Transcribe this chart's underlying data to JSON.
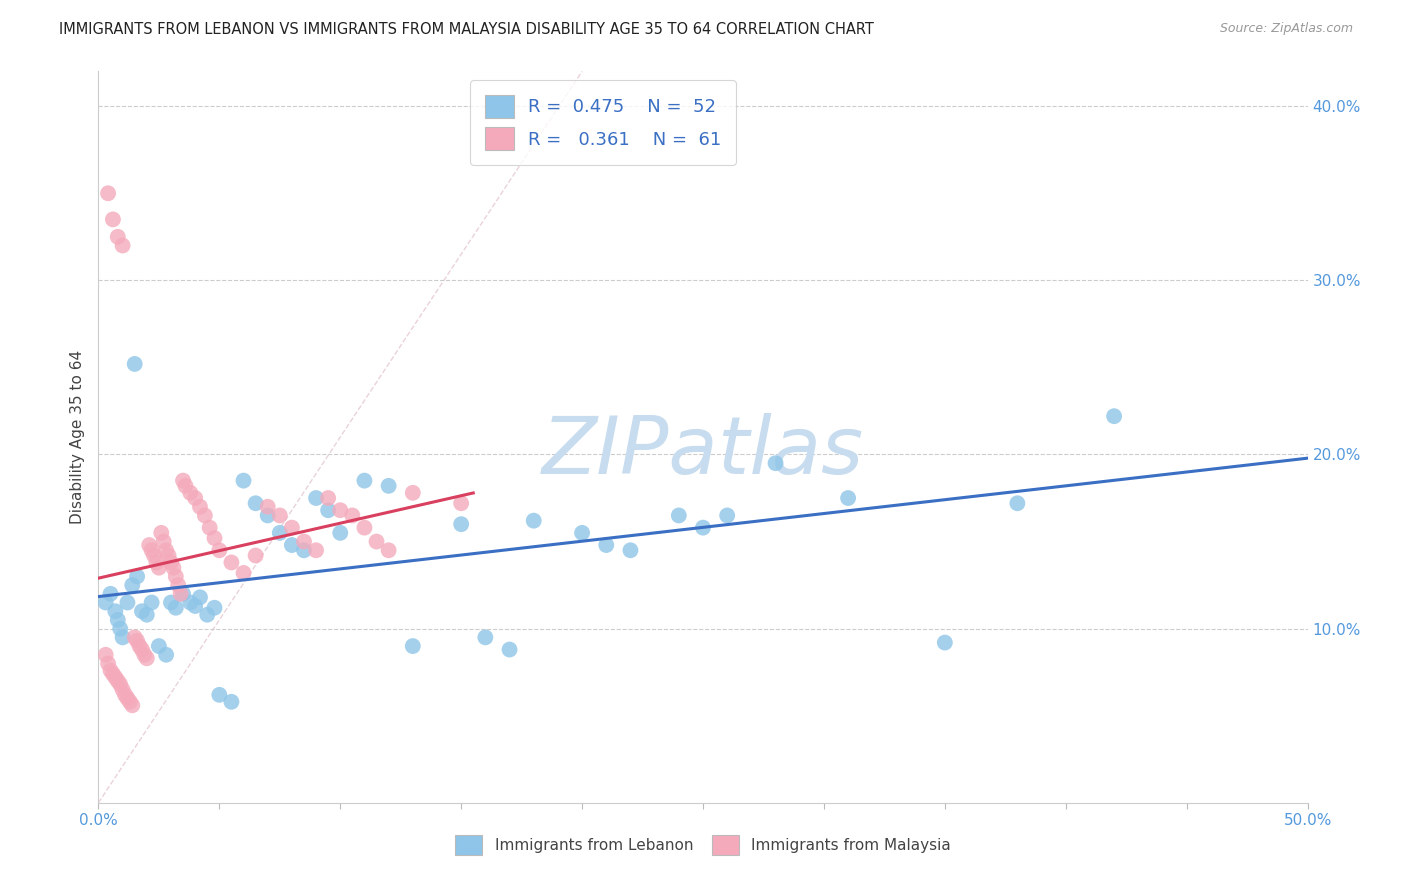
{
  "title": "IMMIGRANTS FROM LEBANON VS IMMIGRANTS FROM MALAYSIA DISABILITY AGE 35 TO 64 CORRELATION CHART",
  "source": "Source: ZipAtlas.com",
  "ylabel": "Disability Age 35 to 64",
  "xlim": [
    0.0,
    0.5
  ],
  "ylim": [
    0.0,
    0.42
  ],
  "ytick_positions": [
    0.1,
    0.2,
    0.3,
    0.4
  ],
  "ytick_labels": [
    "10.0%",
    "20.0%",
    "30.0%",
    "40.0%"
  ],
  "color_lebanon": "#8EC5E8",
  "color_malaysia": "#F4AABB",
  "color_line_lebanon": "#3A6FC4",
  "color_line_malaysia": "#D94060",
  "color_diag": "#D8D8D8",
  "watermark_color": "#C8DCEF",
  "legend_text_color": "#3A6FC4",
  "legend_label_color": "#333333",
  "right_axis_color": "#5599DD"
}
